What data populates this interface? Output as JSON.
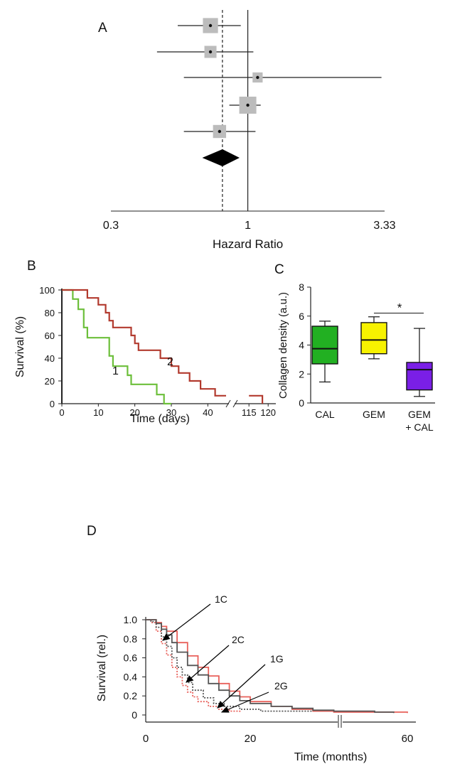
{
  "chart_data": [
    {
      "panel": "A",
      "type": "forest",
      "xlabel": "Hazard Ratio",
      "x_scale": "log",
      "xlim": [
        0.3,
        3.33
      ],
      "tick_labels": [
        "0.3",
        "1",
        "3.33"
      ],
      "tick_values": [
        0.3,
        1,
        3.33
      ],
      "reference_value": 1,
      "pooled_estimate": 0.8,
      "rows": [
        {
          "hr": 0.72,
          "ci": [
            0.54,
            0.94
          ],
          "weight": 0.8
        },
        {
          "hr": 0.72,
          "ci": [
            0.45,
            1.05
          ],
          "weight": 0.5
        },
        {
          "hr": 1.09,
          "ci": [
            0.57,
            3.24
          ],
          "weight": 0.3
        },
        {
          "hr": 1.0,
          "ci": [
            0.85,
            1.12
          ],
          "weight": 1.0
        },
        {
          "hr": 0.78,
          "ci": [
            0.57,
            1.07
          ],
          "weight": 0.6
        }
      ],
      "summary": {
        "hr": 0.8,
        "ci": [
          0.67,
          0.93
        ]
      }
    },
    {
      "panel": "B",
      "type": "line",
      "xlabel": "Time (days)",
      "ylabel": "Survival (%)",
      "ylim": [
        0,
        100
      ],
      "y_ticks": [
        "0",
        "20",
        "40",
        "60",
        "80",
        "100"
      ],
      "x_ticks_left": [
        "0",
        "10",
        "20",
        "30",
        "40"
      ],
      "x_ticks_right": [
        "115",
        "120"
      ],
      "series": [
        {
          "name": "1",
          "color": "#6cbf3a",
          "steps": [
            [
              0,
              100
            ],
            [
              3,
              100
            ],
            [
              3,
              92
            ],
            [
              4.5,
              92
            ],
            [
              4.5,
              83
            ],
            [
              6,
              83
            ],
            [
              6,
              67
            ],
            [
              7,
              67
            ],
            [
              7,
              58
            ],
            [
              13,
              58
            ],
            [
              13,
              42
            ],
            [
              14,
              42
            ],
            [
              14,
              33
            ],
            [
              18,
              33
            ],
            [
              18,
              25
            ],
            [
              19,
              25
            ],
            [
              19,
              17
            ],
            [
              26,
              17
            ],
            [
              26,
              8
            ],
            [
              28,
              8
            ],
            [
              28,
              0
            ],
            [
              30,
              0
            ]
          ]
        },
        {
          "name": "2",
          "color": "#b23a2e",
          "steps": [
            [
              0,
              100
            ],
            [
              7,
              100
            ],
            [
              7,
              93
            ],
            [
              10,
              93
            ],
            [
              10,
              87
            ],
            [
              12,
              87
            ],
            [
              12,
              80
            ],
            [
              13,
              80
            ],
            [
              13,
              73
            ],
            [
              14,
              73
            ],
            [
              14,
              67
            ],
            [
              19,
              67
            ],
            [
              19,
              60
            ],
            [
              20,
              60
            ],
            [
              20,
              53
            ],
            [
              21,
              53
            ],
            [
              21,
              47
            ],
            [
              27,
              47
            ],
            [
              27,
              40
            ],
            [
              30,
              40
            ],
            [
              30,
              33
            ],
            [
              32,
              33
            ],
            [
              32,
              27
            ],
            [
              35,
              27
            ],
            [
              35,
              20
            ],
            [
              38,
              20
            ],
            [
              38,
              13
            ],
            [
              42,
              13
            ],
            [
              42,
              7
            ],
            [
              45,
              7
            ]
          ]
        }
      ],
      "series_2_tail": [
        [
          115,
          7
        ],
        [
          118.5,
          7
        ],
        [
          118.5,
          0
        ]
      ]
    },
    {
      "panel": "C",
      "type": "box",
      "ylabel": "Collagen density (a.u.)",
      "ylim": [
        0,
        8
      ],
      "y_ticks": [
        "0",
        "2",
        "4",
        "6",
        "8"
      ],
      "significance": "*",
      "boxes": [
        {
          "label": "CAL",
          "color": "#22b022",
          "min": 1.45,
          "q1": 2.7,
          "median": 3.75,
          "q3": 5.3,
          "max": 5.65
        },
        {
          "label": "GEM",
          "color": "#f7f200",
          "min": 3.05,
          "q1": 3.4,
          "median": 4.35,
          "q3": 5.55,
          "max": 5.95
        },
        {
          "label_line1": "GEM",
          "label_line2": "+ CAL",
          "color": "#7a1fe6",
          "min": 0.45,
          "q1": 0.9,
          "median": 2.3,
          "q3": 2.8,
          "max": 5.15
        }
      ]
    },
    {
      "panel": "D",
      "type": "line",
      "xlabel": "Time (months)",
      "ylabel": "Survival (rel.)",
      "ylim": [
        0,
        1.0
      ],
      "y_ticks": [
        "0",
        "0.2",
        "0.4",
        "0.6",
        "0.8",
        "1.0"
      ],
      "x_ticks": [
        "0",
        "20",
        "60"
      ],
      "series": [
        {
          "name": "1C",
          "color": "#e8605a",
          "style": "dotted",
          "points": [
            [
              0,
              1.0
            ],
            [
              1,
              0.97
            ],
            [
              2,
              0.88
            ],
            [
              3,
              0.75
            ],
            [
              4,
              0.63
            ],
            [
              5,
              0.5
            ],
            [
              6,
              0.4
            ],
            [
              7,
              0.31
            ],
            [
              8,
              0.24
            ],
            [
              9,
              0.19
            ],
            [
              10,
              0.14
            ],
            [
              12,
              0.09
            ],
            [
              14,
              0.06
            ],
            [
              16,
              0.04
            ],
            [
              18,
              0.02
            ]
          ]
        },
        {
          "name": "2C",
          "color": "#555555",
          "style": "dotted",
          "points": [
            [
              0,
              1.0
            ],
            [
              1,
              0.98
            ],
            [
              2,
              0.92
            ],
            [
              3,
              0.82
            ],
            [
              4,
              0.72
            ],
            [
              5,
              0.6
            ],
            [
              6,
              0.5
            ],
            [
              7,
              0.42
            ],
            [
              8,
              0.34
            ],
            [
              9,
              0.26
            ],
            [
              11,
              0.18
            ],
            [
              13,
              0.12
            ],
            [
              15,
              0.09
            ],
            [
              18,
              0.06
            ],
            [
              22,
              0.04
            ],
            [
              28,
              0.04
            ],
            [
              34,
              0.03
            ]
          ]
        },
        {
          "name": "1G",
          "color": "#e8605a",
          "style": "solid",
          "points": [
            [
              0,
              1.0
            ],
            [
              2,
              0.97
            ],
            [
              3,
              0.93
            ],
            [
              4,
              0.88
            ],
            [
              6,
              0.76
            ],
            [
              8,
              0.62
            ],
            [
              10,
              0.5
            ],
            [
              12,
              0.41
            ],
            [
              14,
              0.33
            ],
            [
              16,
              0.25
            ],
            [
              18,
              0.19
            ],
            [
              20,
              0.14
            ],
            [
              24,
              0.09
            ],
            [
              28,
              0.06
            ],
            [
              32,
              0.04
            ],
            [
              36,
              0.03
            ],
            [
              60,
              0.02
            ]
          ]
        },
        {
          "name": "2G",
          "color": "#555555",
          "style": "solid",
          "points": [
            [
              0,
              1.0
            ],
            [
              2,
              0.96
            ],
            [
              3,
              0.9
            ],
            [
              4,
              0.84
            ],
            [
              5,
              0.76
            ],
            [
              6,
              0.66
            ],
            [
              8,
              0.52
            ],
            [
              10,
              0.42
            ],
            [
              12,
              0.33
            ],
            [
              14,
              0.26
            ],
            [
              16,
              0.2
            ],
            [
              18,
              0.15
            ],
            [
              20,
              0.12
            ],
            [
              24,
              0.09
            ],
            [
              28,
              0.07
            ],
            [
              32,
              0.05
            ],
            [
              36,
              0.04
            ],
            [
              48,
              0.03
            ],
            [
              55,
              0.02
            ]
          ]
        }
      ]
    }
  ]
}
